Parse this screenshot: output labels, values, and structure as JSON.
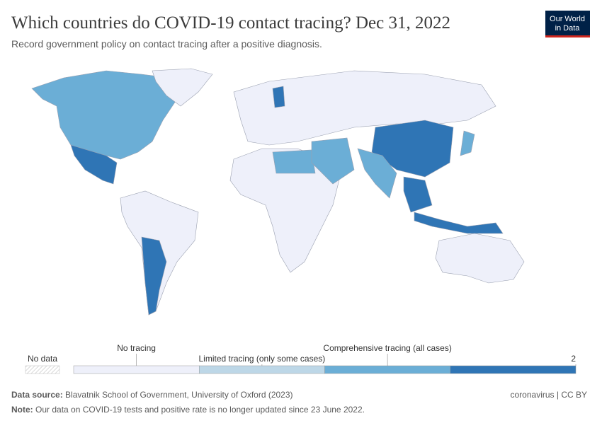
{
  "header": {
    "title": "Which countries do COVID-19 contact tracing? Dec 31, 2022",
    "subtitle": "Record government policy on contact tracing after a positive diagnosis.",
    "logo": [
      "Our World",
      "in Data"
    ]
  },
  "legend": {
    "no_data": "No data",
    "bins": [
      {
        "label": "No tracing",
        "color": "#eef0fa"
      },
      {
        "label": "Limited tracing (only some cases)",
        "color": "#bdd7e7"
      },
      {
        "label": "Comprehensive tracing (all cases)",
        "color": "#6baed6"
      },
      {
        "label": 2,
        "color": "#2f75b5"
      }
    ]
  },
  "footer": {
    "source_label": "Data source:",
    "source": "Blavatnik School of Government, University of Oxford (2023)",
    "note_label": "Note:",
    "note": "Our data on COVID-19 tests and positive rate is no longer updated since 23 June 2022.",
    "license": "coronavirus | CC BY"
  }
}
